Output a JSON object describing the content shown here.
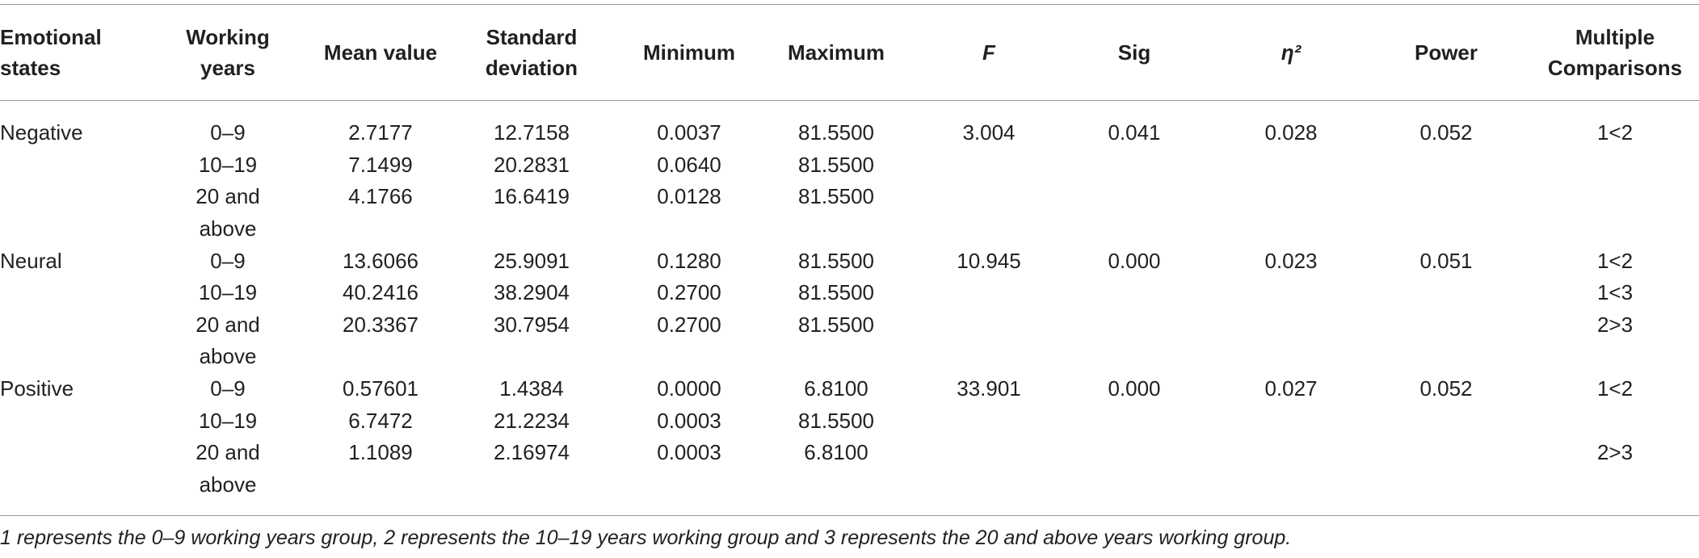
{
  "table": {
    "header": [
      "Emotional states",
      "Working years",
      "Mean value",
      "Standard deviation",
      "Minimum",
      "Maximum",
      "F",
      "Sig",
      "η²",
      "Power",
      "Multiple Comparisons"
    ],
    "groups": [
      {
        "state": "Negative",
        "F": "3.004",
        "sig": "0.041",
        "eta": "0.028",
        "power": "0.052",
        "rows": [
          {
            "years": "0–9",
            "mean": "2.7177",
            "sd": "12.7158",
            "min": "0.0037",
            "max": "81.5500",
            "comparison": "1<2"
          },
          {
            "years": "10–19",
            "mean": "7.1499",
            "sd": "20.2831",
            "min": "0.0640",
            "max": "81.5500",
            "comparison": null
          },
          {
            "years": "20 and above",
            "mean": "4.1766",
            "sd": "16.6419",
            "min": "0.0128",
            "max": "81.5500",
            "comparison": null
          }
        ]
      },
      {
        "state": "Neural",
        "F": "10.945",
        "sig": "0.000",
        "eta": "0.023",
        "power": "0.051",
        "rows": [
          {
            "years": "0–9",
            "mean": "13.6066",
            "sd": "25.9091",
            "min": "0.1280",
            "max": "81.5500",
            "comparison": "1<2"
          },
          {
            "years": "10–19",
            "mean": "40.2416",
            "sd": "38.2904",
            "min": "0.2700",
            "max": "81.5500",
            "comparison": "1<3"
          },
          {
            "years": "20 and above",
            "mean": "20.3367",
            "sd": "30.7954",
            "min": "0.2700",
            "max": "81.5500",
            "comparison": "2>3"
          }
        ]
      },
      {
        "state": "Positive",
        "F": "33.901",
        "sig": "0.000",
        "eta": "0.027",
        "power": "0.052",
        "rows": [
          {
            "years": "0–9",
            "mean": "0.57601",
            "sd": "1.4384",
            "min": "0.0000",
            "max": "6.8100",
            "comparison": "1<2"
          },
          {
            "years": "10–19",
            "mean": "6.7472",
            "sd": "21.2234",
            "min": "0.0003",
            "max": "81.5500",
            "comparison": null
          },
          {
            "years": "20 and above",
            "mean": "1.1089",
            "sd": "2.16974",
            "min": "0.0003",
            "max": "6.8100",
            "comparison": "2>3"
          }
        ]
      }
    ],
    "footnote": "1 represents the 0–9 working years group, 2 represents the 10–19 years working group and 3 represents the 20 and above years working group."
  }
}
